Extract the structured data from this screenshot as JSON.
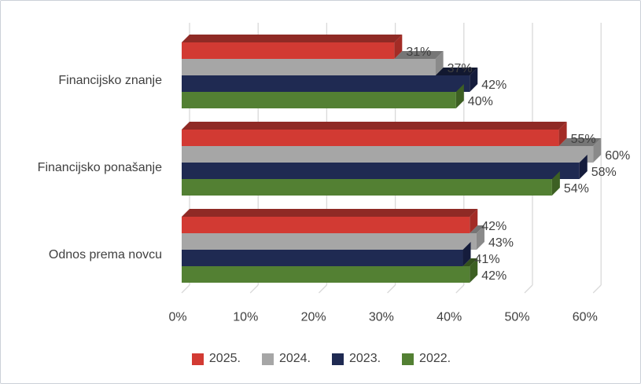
{
  "chart_data": {
    "type": "bar",
    "variant": "3d-clustered-horizontal",
    "title": "",
    "categories": [
      "Financijsko znanje",
      "Financijsko ponašanje",
      "Odnos prema novcu"
    ],
    "series": [
      {
        "name": "2025.",
        "values": [
          31,
          55,
          42
        ],
        "color": "#d23a33",
        "color_top": "#8f2a25",
        "color_side": "#a32c26"
      },
      {
        "name": "2024.",
        "values": [
          37,
          60,
          43
        ],
        "color": "#a6a6a6",
        "color_top": "#767676",
        "color_side": "#8a8a8a"
      },
      {
        "name": "2023.",
        "values": [
          42,
          58,
          41
        ],
        "color": "#1f2a52",
        "color_top": "#121830",
        "color_side": "#151c3c"
      },
      {
        "name": "2022.",
        "values": [
          40,
          54,
          42
        ],
        "color": "#538033",
        "color_top": "#34511d",
        "color_side": "#3d6023"
      }
    ],
    "data_labels": [
      [
        "31%",
        "55%",
        "42%"
      ],
      [
        "37%",
        "60%",
        "43%"
      ],
      [
        "42%",
        "58%",
        "41%"
      ],
      [
        "40%",
        "54%",
        "42%"
      ]
    ],
    "x_axis": {
      "min": 0,
      "max": 60,
      "step": 10,
      "ticks": [
        "0%",
        "10%",
        "20%",
        "30%",
        "40%",
        "50%",
        "60%"
      ]
    },
    "grid": true,
    "legend_position": "bottom"
  },
  "style": {
    "text_color": "#404040",
    "grid_color": "#d9d9d9",
    "frame_border_color": "#ccd1d8",
    "background_color": "#ffffff"
  }
}
